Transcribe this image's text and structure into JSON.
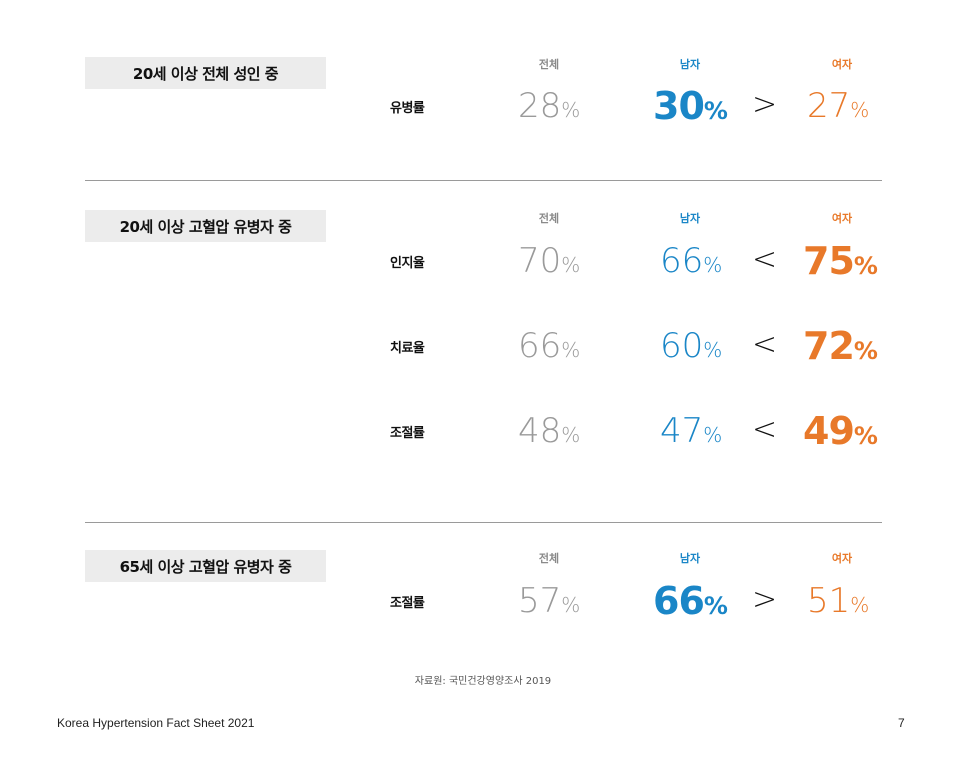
{
  "columns": {
    "total": "전체",
    "male": "남자",
    "female": "여자"
  },
  "pct": "%",
  "sections": [
    {
      "title": "20세 이상 전체 성인 중",
      "rows": [
        {
          "label": "유병률",
          "total": "28",
          "male": "30",
          "compare": ">",
          "female": "27",
          "emphasis": "male"
        }
      ]
    },
    {
      "title": "20세 이상 고혈압 유병자 중",
      "rows": [
        {
          "label": "인지율",
          "total": "70",
          "male": "66",
          "compare": "<",
          "female": "75",
          "emphasis": "female"
        },
        {
          "label": "치료율",
          "total": "66",
          "male": "60",
          "compare": "<",
          "female": "72",
          "emphasis": "female"
        },
        {
          "label": "조절률",
          "total": "48",
          "male": "47",
          "compare": "<",
          "female": "49",
          "emphasis": "female"
        }
      ]
    },
    {
      "title": "65세 이상 고혈압 유병자 중",
      "rows": [
        {
          "label": "조절률",
          "total": "57",
          "male": "66",
          "compare": ">",
          "female": "51",
          "emphasis": "male"
        }
      ]
    }
  ],
  "source": "자료원: 국민건강영양조사 2019",
  "footer": {
    "title": "Korea Hypertension Fact Sheet 2021",
    "page": "7"
  },
  "colors": {
    "total": "#9a9a9a",
    "male": "#1a86c7",
    "female": "#e8792a",
    "title_box": "#ececec"
  }
}
